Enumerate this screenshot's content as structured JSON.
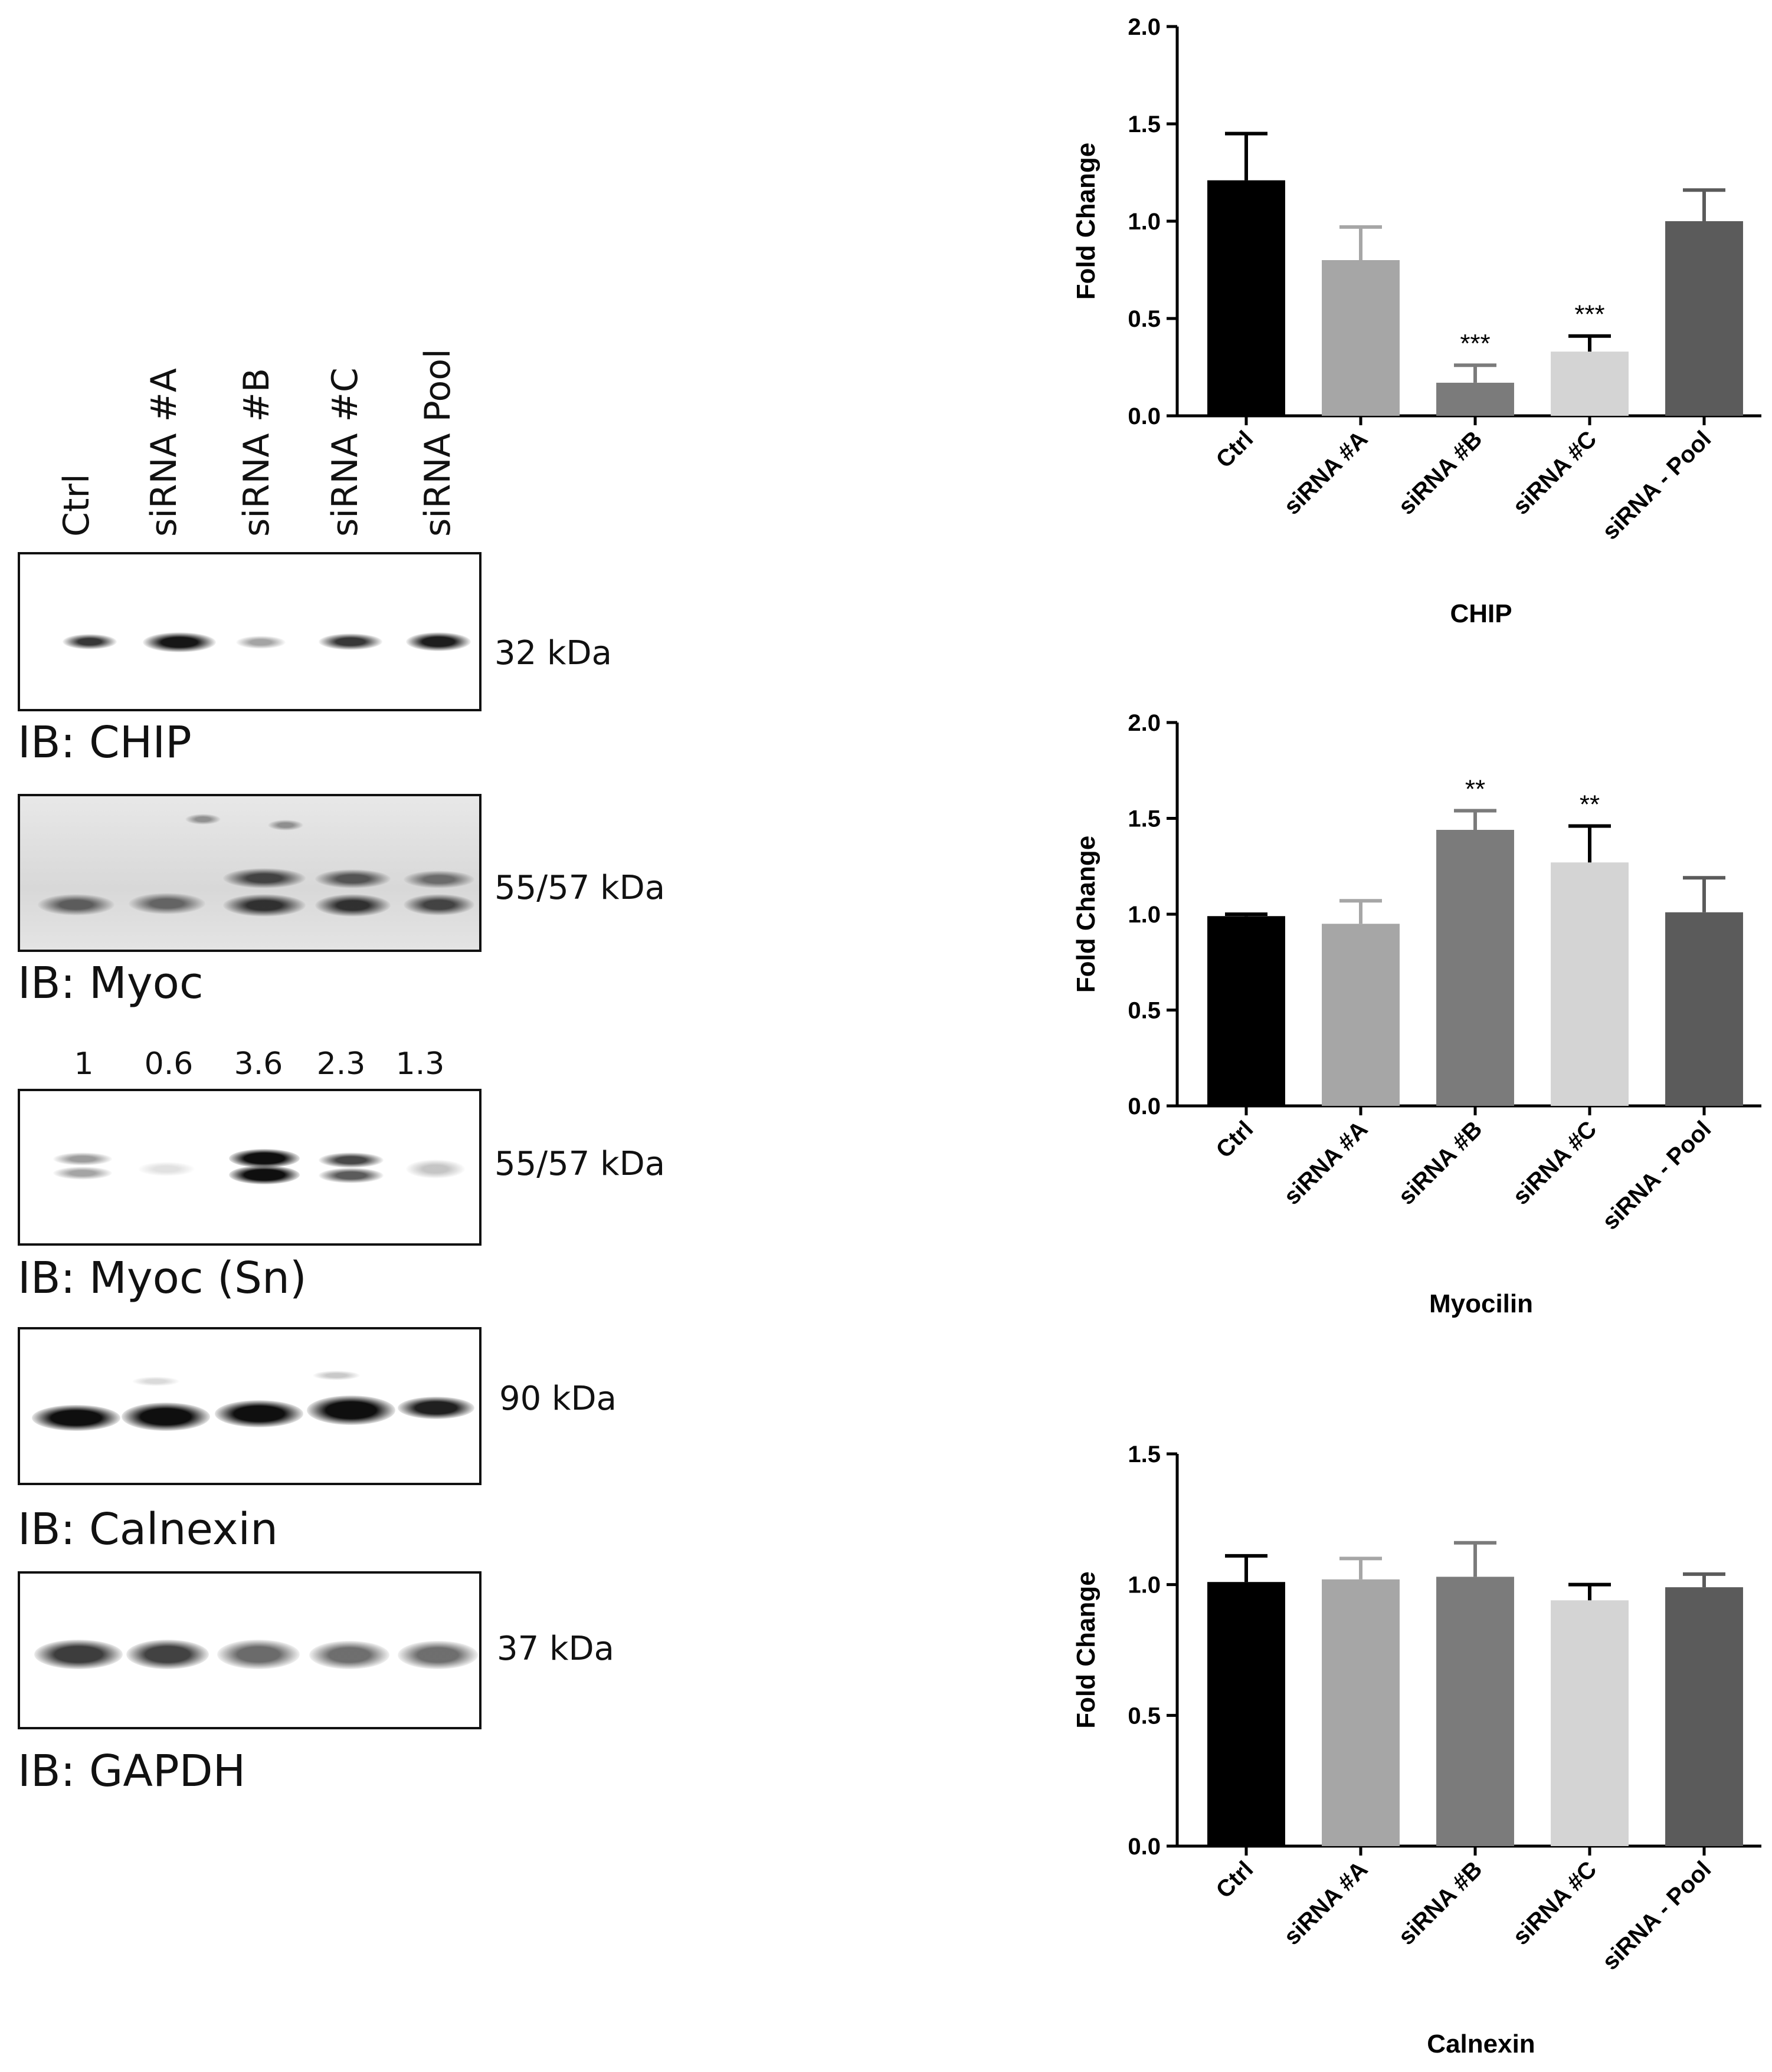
{
  "blot": {
    "lanes": [
      "Ctrl",
      "siRNA #A",
      "siRNA #B",
      "siRNA #C",
      "siRNA Pool"
    ],
    "panels": [
      {
        "ib": "IB: CHIP",
        "kda": "32 kDa"
      },
      {
        "ib": "IB: Myoc",
        "kda": "55/57 kDa"
      },
      {
        "ib": "IB: Myoc (Sn)",
        "kda": "55/57 kDa",
        "quant": [
          "1",
          "0.6",
          "3.6",
          "2.3",
          "1.3"
        ]
      },
      {
        "ib": "IB: Calnexin",
        "kda": "90 kDa"
      },
      {
        "ib": "IB: GAPDH",
        "kda": "37 kDa"
      }
    ]
  },
  "chart_data": [
    {
      "type": "bar",
      "title": "",
      "xlabel": "CHIP",
      "ylabel": "Fold  Change",
      "categories": [
        "Ctrl",
        "siRNA #A",
        "siRNA #B",
        "siRNA #C",
        "siRNA - Pool"
      ],
      "values": [
        1.21,
        0.8,
        0.17,
        0.33,
        1.0
      ],
      "errors": [
        0.24,
        0.17,
        0.09,
        0.08,
        0.16
      ],
      "annotations": [
        "",
        "",
        "***",
        "***",
        ""
      ],
      "colors": [
        "#000000",
        "#a6a6a6",
        "#7b7b7b",
        "#d4d4d4",
        "#5b5b5b"
      ],
      "ylim": [
        0,
        2.0
      ],
      "yticks": [
        "0.0",
        "0.5",
        "1.0",
        "1.5",
        "2.0"
      ],
      "grid": false
    },
    {
      "type": "bar",
      "title": "",
      "xlabel": "Myocilin",
      "ylabel": "Fold Change",
      "categories": [
        "Ctrl",
        "siRNA #A",
        "siRNA #B",
        "siRNA #C",
        "siRNA - Pool"
      ],
      "values": [
        0.99,
        0.95,
        1.44,
        1.27,
        1.01
      ],
      "errors": [
        0.01,
        0.12,
        0.1,
        0.19,
        0.18
      ],
      "annotations": [
        "",
        "",
        "**",
        "**",
        ""
      ],
      "colors": [
        "#000000",
        "#a6a6a6",
        "#7b7b7b",
        "#d4d4d4",
        "#5b5b5b"
      ],
      "ylim": [
        0,
        2.0
      ],
      "yticks": [
        "0.0",
        "0.5",
        "1.0",
        "1.5",
        "2.0"
      ],
      "grid": false
    },
    {
      "type": "bar",
      "title": "",
      "xlabel": "Calnexin",
      "ylabel": "Fold  Change",
      "categories": [
        "Ctrl",
        "siRNA #A",
        "siRNA #B",
        "siRNA #C",
        "siRNA - Pool"
      ],
      "values": [
        1.01,
        1.02,
        1.03,
        0.94,
        0.99
      ],
      "errors": [
        0.1,
        0.08,
        0.13,
        0.06,
        0.05
      ],
      "annotations": [
        "",
        "",
        "",
        "",
        ""
      ],
      "colors": [
        "#000000",
        "#a6a6a6",
        "#7b7b7b",
        "#d4d4d4",
        "#5b5b5b"
      ],
      "ylim": [
        0,
        1.5
      ],
      "yticks": [
        "0.0",
        "0.5",
        "1.0",
        "1.5"
      ],
      "grid": false
    }
  ]
}
